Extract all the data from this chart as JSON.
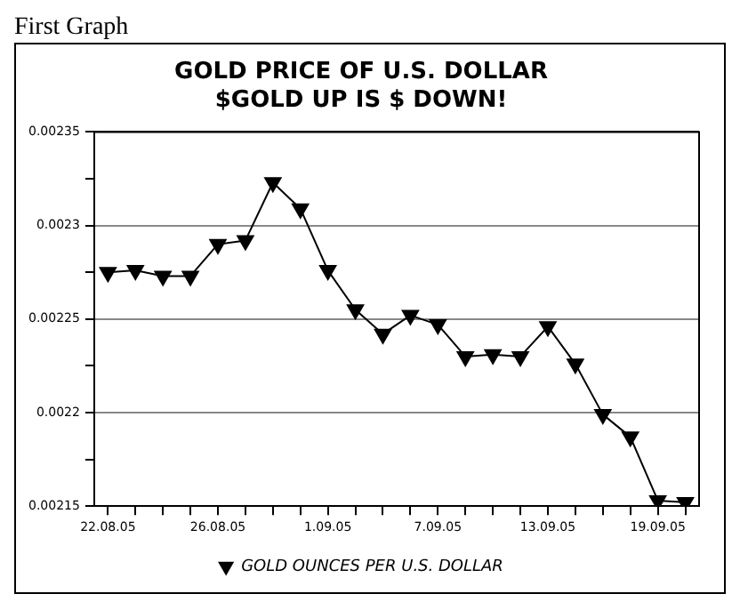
{
  "chart_data": {
    "type": "line",
    "title": [
      "GOLD PRICE OF U.S. DOLLAR",
      "$GOLD UP IS $ DOWN!"
    ],
    "annotations": [
      "First Graph"
    ],
    "categories": [
      "22.08.05",
      null,
      null,
      null,
      "26.08.05",
      null,
      null,
      null,
      "1.09.05",
      null,
      null,
      null,
      "7.09.05",
      null,
      null,
      null,
      "13.09.05",
      null,
      null,
      null,
      "19.09.05",
      null
    ],
    "series": [
      {
        "name": "GOLD OUNCES PER U.S. DOLLAR",
        "color": "#000000",
        "values": [
          0.002275,
          0.002276,
          0.002273,
          0.002273,
          0.00229,
          0.002292,
          0.002323,
          0.002309,
          0.002276,
          0.002255,
          0.002242,
          0.002252,
          0.002247,
          0.00223,
          0.002231,
          0.00223,
          0.002246,
          0.002226,
          0.002199,
          0.002187,
          0.002153,
          0.002152
        ]
      }
    ],
    "ylim": [
      0.00215,
      0.00235
    ],
    "yticks": [
      0.00215,
      {
        "value": 0.002175,
        "label": null
      },
      0.0022,
      {
        "value": 0.002225,
        "label": null
      },
      0.00225,
      {
        "value": 0.002275,
        "label": null
      },
      0.0023,
      {
        "value": 0.002325,
        "label": null
      },
      0.00235
    ],
    "grid": "y",
    "legend": "bottom",
    "marker": "triangle",
    "line_style": "solid"
  }
}
